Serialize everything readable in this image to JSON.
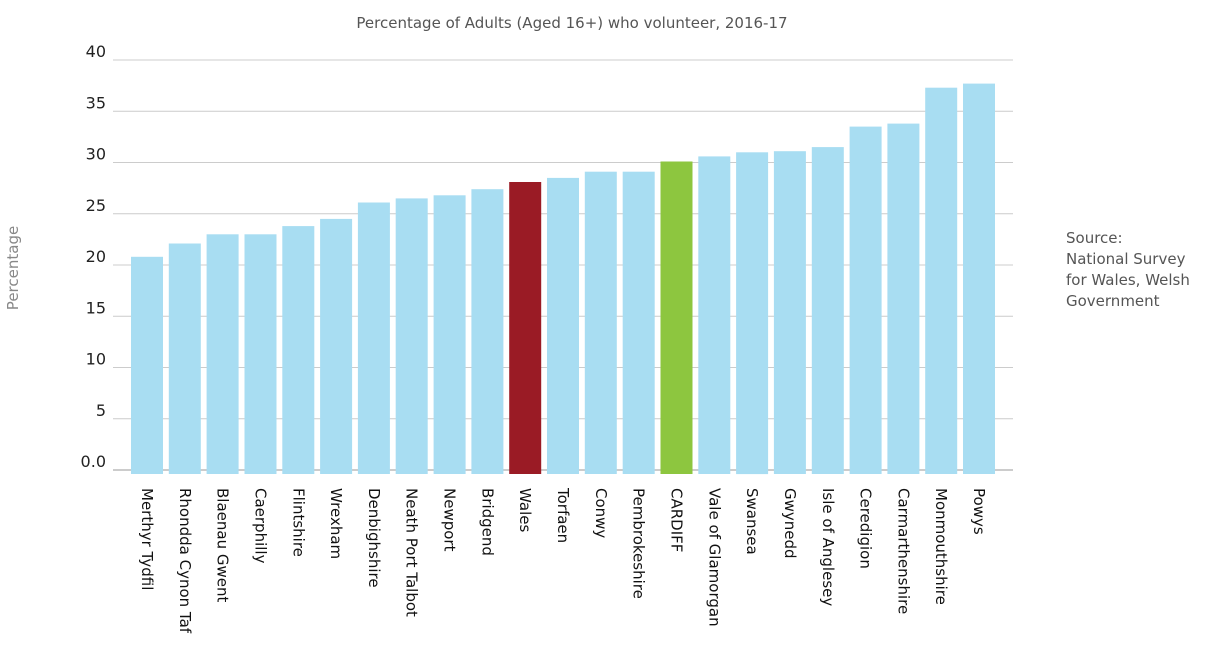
{
  "chart_data": {
    "type": "bar",
    "title": "Percentage of Adults (Aged 16+) who volunteer, 2016-17",
    "ylabel": "Percentage",
    "ylim": [
      0,
      40
    ],
    "yticks": [
      "0.0",
      "5",
      "10",
      "15",
      "20",
      "25",
      "30",
      "35",
      "40"
    ],
    "grid": true,
    "categories": [
      "Merthyr Tydfil",
      "Rhondda Cynon Taf",
      "Blaenau Gwent",
      "Caerphilly",
      "Flintshire",
      "Wrexham",
      "Denbighshire",
      "Neath Port Talbot",
      "Newport",
      "Bridgend",
      "Wales",
      "Torfaen",
      "Conwy",
      "Pembrokeshire",
      "CARDIFF",
      "Vale of Glamorgan",
      "Swansea",
      "Gwynedd",
      "Isle of Anglesey",
      "Ceredigion",
      "Carmarthenshire",
      "Monmouthshire",
      "Powys"
    ],
    "values": [
      20.8,
      22.1,
      23.0,
      23.0,
      23.8,
      24.5,
      26.1,
      26.5,
      26.8,
      27.4,
      28.1,
      28.5,
      29.1,
      29.1,
      30.1,
      30.6,
      31.0,
      31.1,
      31.5,
      33.5,
      33.8,
      37.3,
      37.7
    ],
    "colors": {
      "default": "#a8ddf2",
      "Wales": "#9a1b25",
      "CARDIFF": "#8dc63f"
    },
    "source": "Source:\nNational Survey\nfor Wales, Welsh\nGovernment"
  }
}
